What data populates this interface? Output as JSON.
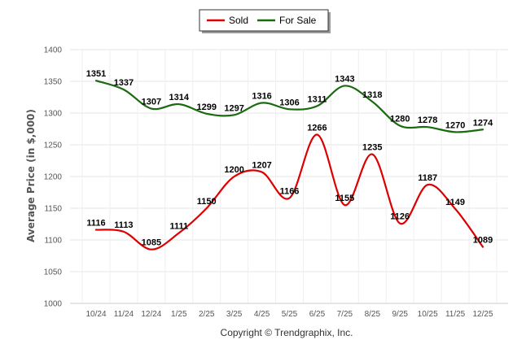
{
  "chart_data": {
    "type": "line",
    "title": "",
    "xlabel": "",
    "ylabel": "Average Price (in $,000)",
    "ylim": [
      1000,
      1400
    ],
    "yticks": [
      1000,
      1050,
      1100,
      1150,
      1200,
      1250,
      1300,
      1350,
      1400
    ],
    "grid": true,
    "legend_position": "top-center",
    "categories": [
      "10/24",
      "11/24",
      "12/24",
      "1/25",
      "2/25",
      "3/25",
      "4/25",
      "5/25",
      "6/25",
      "7/25",
      "8/25",
      "9/25",
      "10/25",
      "11/25",
      "12/25"
    ],
    "series": [
      {
        "name": "Sold",
        "color": "#dd0000",
        "values": [
          1116,
          1113,
          1085,
          1111,
          1150,
          1200,
          1207,
          1166,
          1266,
          1155,
          1235,
          1126,
          1187,
          1149,
          1089
        ]
      },
      {
        "name": "For Sale",
        "color": "#1a6b0f",
        "values": [
          1351,
          1337,
          1307,
          1314,
          1299,
          1297,
          1316,
          1306,
          1311,
          1343,
          1318,
          1280,
          1278,
          1270,
          1274
        ]
      }
    ],
    "credit": "Copyright © Trendgraphix, Inc."
  }
}
